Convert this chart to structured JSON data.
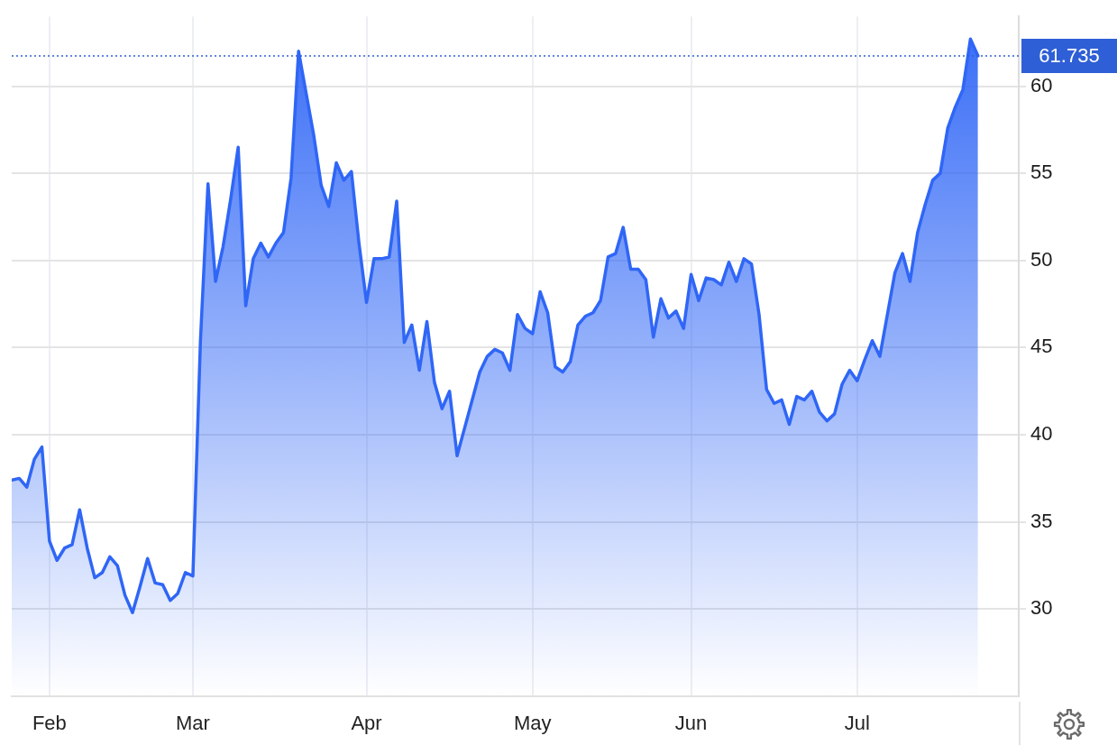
{
  "chart_data": {
    "type": "area",
    "categories": [
      null,
      null,
      null,
      null,
      null,
      "Feb",
      null,
      null,
      null,
      null,
      null,
      null,
      null,
      null,
      null,
      null,
      null,
      null,
      null,
      null,
      null,
      null,
      null,
      null,
      "Mar",
      null,
      null,
      null,
      null,
      null,
      null,
      null,
      null,
      null,
      null,
      null,
      null,
      null,
      null,
      null,
      null,
      null,
      null,
      null,
      null,
      null,
      null,
      "Apr",
      null,
      null,
      null,
      null,
      null,
      null,
      null,
      null,
      null,
      null,
      null,
      null,
      null,
      null,
      null,
      null,
      null,
      null,
      null,
      null,
      null,
      "May",
      null,
      null,
      null,
      null,
      null,
      null,
      null,
      null,
      null,
      null,
      null,
      null,
      null,
      null,
      null,
      null,
      null,
      null,
      null,
      null,
      "Jun",
      null,
      null,
      null,
      null,
      null,
      null,
      null,
      null,
      null,
      null,
      null,
      null,
      null,
      null,
      null,
      null,
      null,
      null,
      null,
      null,
      null,
      "Jul",
      null,
      null,
      null,
      null,
      null,
      null,
      null,
      null,
      null,
      null,
      null,
      null,
      null,
      null,
      null,
      null
    ],
    "values": [
      37.4,
      37.5,
      37.0,
      38.6,
      39.3,
      33.9,
      32.8,
      33.5,
      33.7,
      35.7,
      33.5,
      31.8,
      32.1,
      33.0,
      32.5,
      30.8,
      29.8,
      31.3,
      32.9,
      31.5,
      31.4,
      30.5,
      30.9,
      32.1,
      31.9,
      45.4,
      54.4,
      48.8,
      50.8,
      53.5,
      56.5,
      47.4,
      50.1,
      51.0,
      50.2,
      51.0,
      51.6,
      54.7,
      62.0,
      59.6,
      57.2,
      54.3,
      53.1,
      55.6,
      54.6,
      55.1,
      51.0,
      47.6,
      50.1,
      50.1,
      50.2,
      53.4,
      45.3,
      46.3,
      43.7,
      46.5,
      43.0,
      41.5,
      42.5,
      38.8,
      40.4,
      42.0,
      43.6,
      44.5,
      44.9,
      44.7,
      43.7,
      46.9,
      46.1,
      45.8,
      48.2,
      47.0,
      43.9,
      43.6,
      44.2,
      46.3,
      46.8,
      47.0,
      47.7,
      50.2,
      50.4,
      51.9,
      49.5,
      49.5,
      48.9,
      45.6,
      47.8,
      46.7,
      47.1,
      46.1,
      49.2,
      47.7,
      49.0,
      48.9,
      48.6,
      49.9,
      48.8,
      50.1,
      49.8,
      46.9,
      42.6,
      41.8,
      42.0,
      40.6,
      42.2,
      42.0,
      42.5,
      41.3,
      40.8,
      41.2,
      42.9,
      43.7,
      43.1,
      44.3,
      45.4,
      44.5,
      46.9,
      49.3,
      50.4,
      48.8,
      51.6,
      53.2,
      54.6,
      55.0,
      57.6,
      58.8,
      59.8,
      62.7,
      61.735
    ],
    "color": "#2f66f6",
    "ylim": [
      25,
      64
    ],
    "yticks": [
      30,
      35,
      40,
      45,
      50,
      55,
      60
    ],
    "grid": true,
    "ref_lines": [
      {
        "axis": "y",
        "value": 61.735,
        "label": "61.735",
        "color": "#2f5fd6",
        "line_style": "dotted"
      }
    ]
  }
}
